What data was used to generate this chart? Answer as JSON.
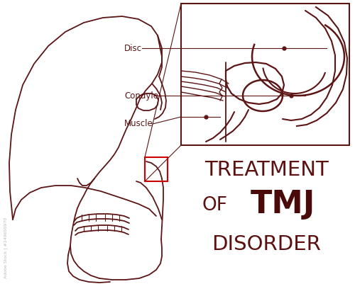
{
  "bg_color": "#ffffff",
  "line_color": "#5C1515",
  "red_box_color": "#CC0000",
  "title_color": "#5C1010",
  "tmj_color": "#4a0a0a",
  "label_texts": [
    "Disc",
    "Condyle",
    "Muscle"
  ],
  "font_size_label": 8.5,
  "watermark": "Adobe Stock | #249650970"
}
